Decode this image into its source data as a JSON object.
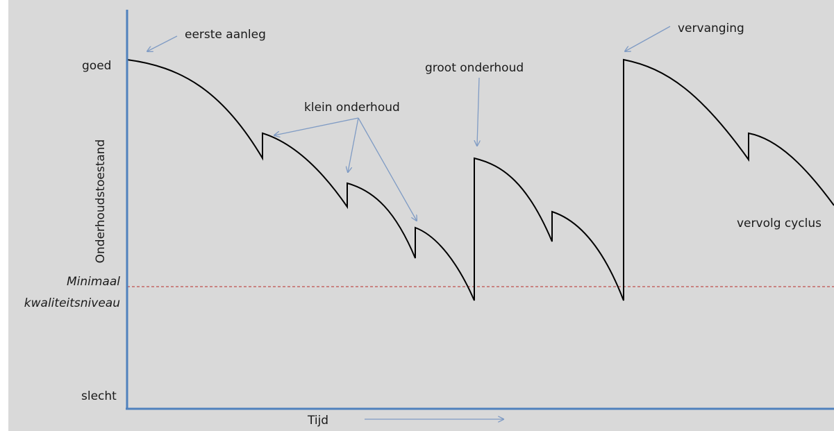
{
  "colors": {
    "background": "#d9d9d9",
    "axis": "#4f81bd",
    "curve": "#000000",
    "arrow": "#7f9bc4",
    "threshold": "#c0504d"
  },
  "y_axis": {
    "label": "Onderhoudstoestand",
    "top_label": "goed",
    "bottom_label": "slecht"
  },
  "x_axis": {
    "label": "Tijd"
  },
  "threshold": {
    "label_line1": "Minimaal",
    "label_line2": "kwaliteitsniveau"
  },
  "annotations": {
    "first_construction": "eerste aanleg",
    "small_maintenance": "klein onderhoud",
    "major_maintenance": "groot onderhoud",
    "replacement": "vervanging",
    "continuation": "vervolg cyclus"
  }
}
